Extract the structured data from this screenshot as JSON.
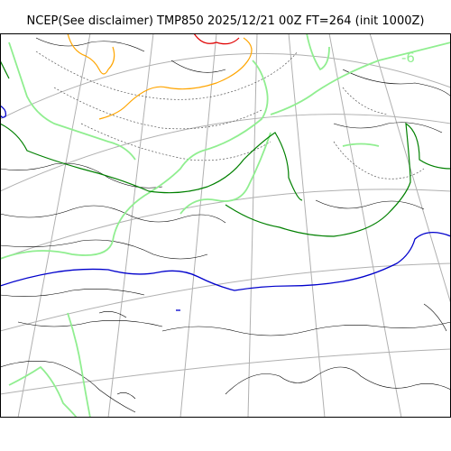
{
  "title": "NCEP(See disclaimer) TMP850 2025/12/21 00Z FT=264 (init 1000Z)",
  "map": {
    "projection": "polar-stereographic",
    "field": "TMP850",
    "contour_labels": [
      {
        "text": "-6",
        "color": "#90ee90"
      }
    ],
    "colors": {
      "graticule": "#b0b0b0",
      "coastline": "#000000",
      "isotherm_dotted": "#555555",
      "isotherm_light_green": "#90ee90",
      "isotherm_dark_green": "#008000",
      "isotherm_blue": "#0000cc",
      "isotherm_orange": "#ffa500",
      "isotherm_red": "#e00000",
      "frame": "#000000"
    }
  }
}
